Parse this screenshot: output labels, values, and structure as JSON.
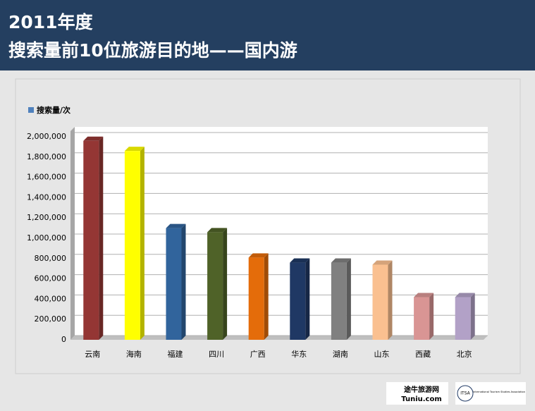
{
  "header": {
    "title_line1": "2011年度",
    "title_line2": "搜索量前10位旅游目的地——国内游"
  },
  "chart_data": {
    "type": "bar",
    "categories": [
      "云南",
      "海南",
      "福建",
      "四川",
      "广西",
      "华东",
      "湖南",
      "山东",
      "西藏",
      "北京"
    ],
    "series": [
      {
        "name": "搜索量/次",
        "color": "#4f81bd",
        "values": [
          1960000,
          1860000,
          1100000,
          1060000,
          810000,
          760000,
          760000,
          740000,
          420000,
          420000
        ]
      }
    ],
    "bar_colors": [
      "#943634",
      "#ffff00",
      "#31649c",
      "#4f6228",
      "#e46c0a",
      "#1f3864",
      "#808080",
      "#fac090",
      "#d99594",
      "#b2a1c7"
    ],
    "ylim": [
      0,
      2000000
    ],
    "yticks": [
      0,
      {
        "value": 200000,
        "label": "200,000"
      },
      {
        "value": 400000,
        "label": "400,000"
      },
      {
        "value": 600000,
        "label": "600,000"
      },
      {
        "value": 800000,
        "label": "800,000"
      },
      {
        "value": 1000000,
        "label": "1,000,000"
      },
      {
        "value": 1200000,
        "label": "1,200,000"
      },
      {
        "value": 1400000,
        "label": "1,400,000"
      },
      {
        "value": 1600000,
        "label": "1,600,000"
      },
      {
        "value": 1800000,
        "label": "1,800,000"
      },
      {
        "value": 2000000,
        "label": "2,000,000"
      }
    ],
    "grid": true,
    "legend": "top-left"
  },
  "logos": {
    "tuniu_cn": "途牛旅游网",
    "tuniu_en": "Tuniu.com",
    "itsa_abbr": "ITSA",
    "itsa_name": "International Tourism Studies Association"
  }
}
